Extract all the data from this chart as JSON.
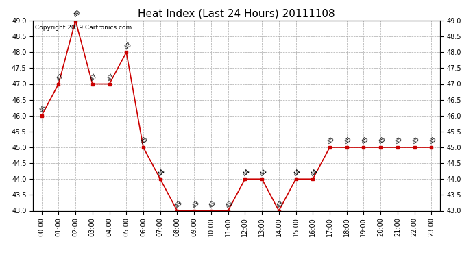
{
  "title": "Heat Index (Last 24 Hours) 20111108",
  "copyright_text": "Copyright 2019 Cartronics.com",
  "hours": [
    "00:00",
    "01:00",
    "02:00",
    "03:00",
    "04:00",
    "05:00",
    "06:00",
    "07:00",
    "08:00",
    "09:00",
    "10:00",
    "11:00",
    "12:00",
    "13:00",
    "14:00",
    "15:00",
    "16:00",
    "17:00",
    "18:00",
    "19:00",
    "20:00",
    "21:00",
    "22:00",
    "23:00"
  ],
  "values": [
    46,
    47,
    49,
    47,
    47,
    48,
    45,
    44,
    43,
    43,
    43,
    43,
    44,
    44,
    43,
    44,
    44,
    45,
    45,
    45,
    45,
    45,
    45,
    45
  ],
  "ylim_min": 43.0,
  "ylim_max": 49.0,
  "ytick_step": 0.5,
  "line_color": "#cc0000",
  "marker": "s",
  "marker_size": 3,
  "marker_color": "#cc0000",
  "bg_color": "#ffffff",
  "grid_color": "#aaaaaa",
  "grid_style": "--",
  "title_fontsize": 11,
  "label_fontsize": 7,
  "copyright_fontsize": 6.5,
  "annotation_fontsize": 6.5
}
